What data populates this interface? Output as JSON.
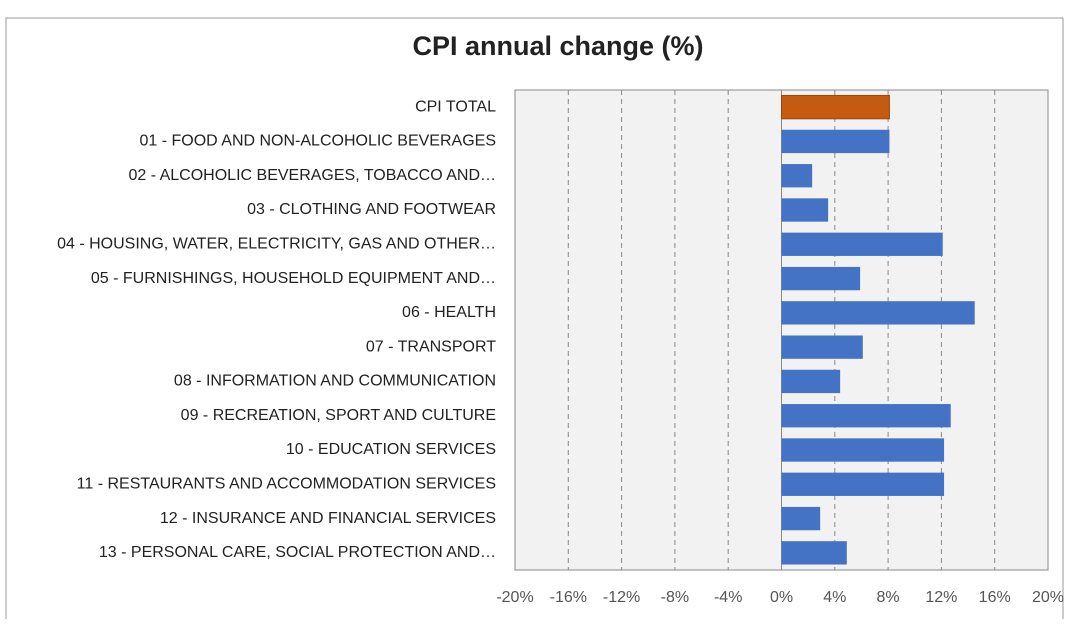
{
  "chart_data": {
    "type": "barh",
    "title": "CPI annual change (%)",
    "categories": [
      "CPI TOTAL",
      "01 - FOOD AND NON-ALCOHOLIC BEVERAGES",
      "02 - ALCOHOLIC BEVERAGES, TOBACCO AND…",
      "03 - CLOTHING AND FOOTWEAR",
      "04 - HOUSING, WATER, ELECTRICITY, GAS AND OTHER…",
      "05 - FURNISHINGS, HOUSEHOLD EQUIPMENT AND…",
      "06 - HEALTH",
      "07 - TRANSPORT",
      "08 - INFORMATION AND COMMUNICATION",
      "09 - RECREATION, SPORT AND CULTURE",
      "10 - EDUCATION SERVICES",
      "11 - RESTAURANTS AND ACCOMMODATION SERVICES",
      "12 - INSURANCE AND FINANCIAL SERVICES",
      "13 - PERSONAL CARE, SOCIAL PROTECTION AND…"
    ],
    "values": [
      8.1,
      8.1,
      2.3,
      3.5,
      12.1,
      5.9,
      14.5,
      6.1,
      4.4,
      12.7,
      12.2,
      12.2,
      2.9,
      4.9
    ],
    "colors": [
      "#c55a11",
      "#4472c4",
      "#4472c4",
      "#4472c4",
      "#4472c4",
      "#4472c4",
      "#4472c4",
      "#4472c4",
      "#4472c4",
      "#4472c4",
      "#4472c4",
      "#4472c4",
      "#4472c4",
      "#4472c4"
    ],
    "xlim": [
      -20,
      20
    ],
    "xticks": [
      {
        "value": -20,
        "label": "-20%"
      },
      {
        "value": -16,
        "label": "-16%"
      },
      {
        "value": -12,
        "label": "-12%"
      },
      {
        "value": -8,
        "label": "-8%"
      },
      {
        "value": -4,
        "label": "-4%"
      },
      {
        "value": 0,
        "label": "0%"
      },
      {
        "value": 4,
        "label": "4%"
      },
      {
        "value": 8,
        "label": "8%"
      },
      {
        "value": 12,
        "label": "12%"
      },
      {
        "value": 16,
        "label": "16%"
      },
      {
        "value": 20,
        "label": "20%"
      }
    ],
    "grid": true
  }
}
